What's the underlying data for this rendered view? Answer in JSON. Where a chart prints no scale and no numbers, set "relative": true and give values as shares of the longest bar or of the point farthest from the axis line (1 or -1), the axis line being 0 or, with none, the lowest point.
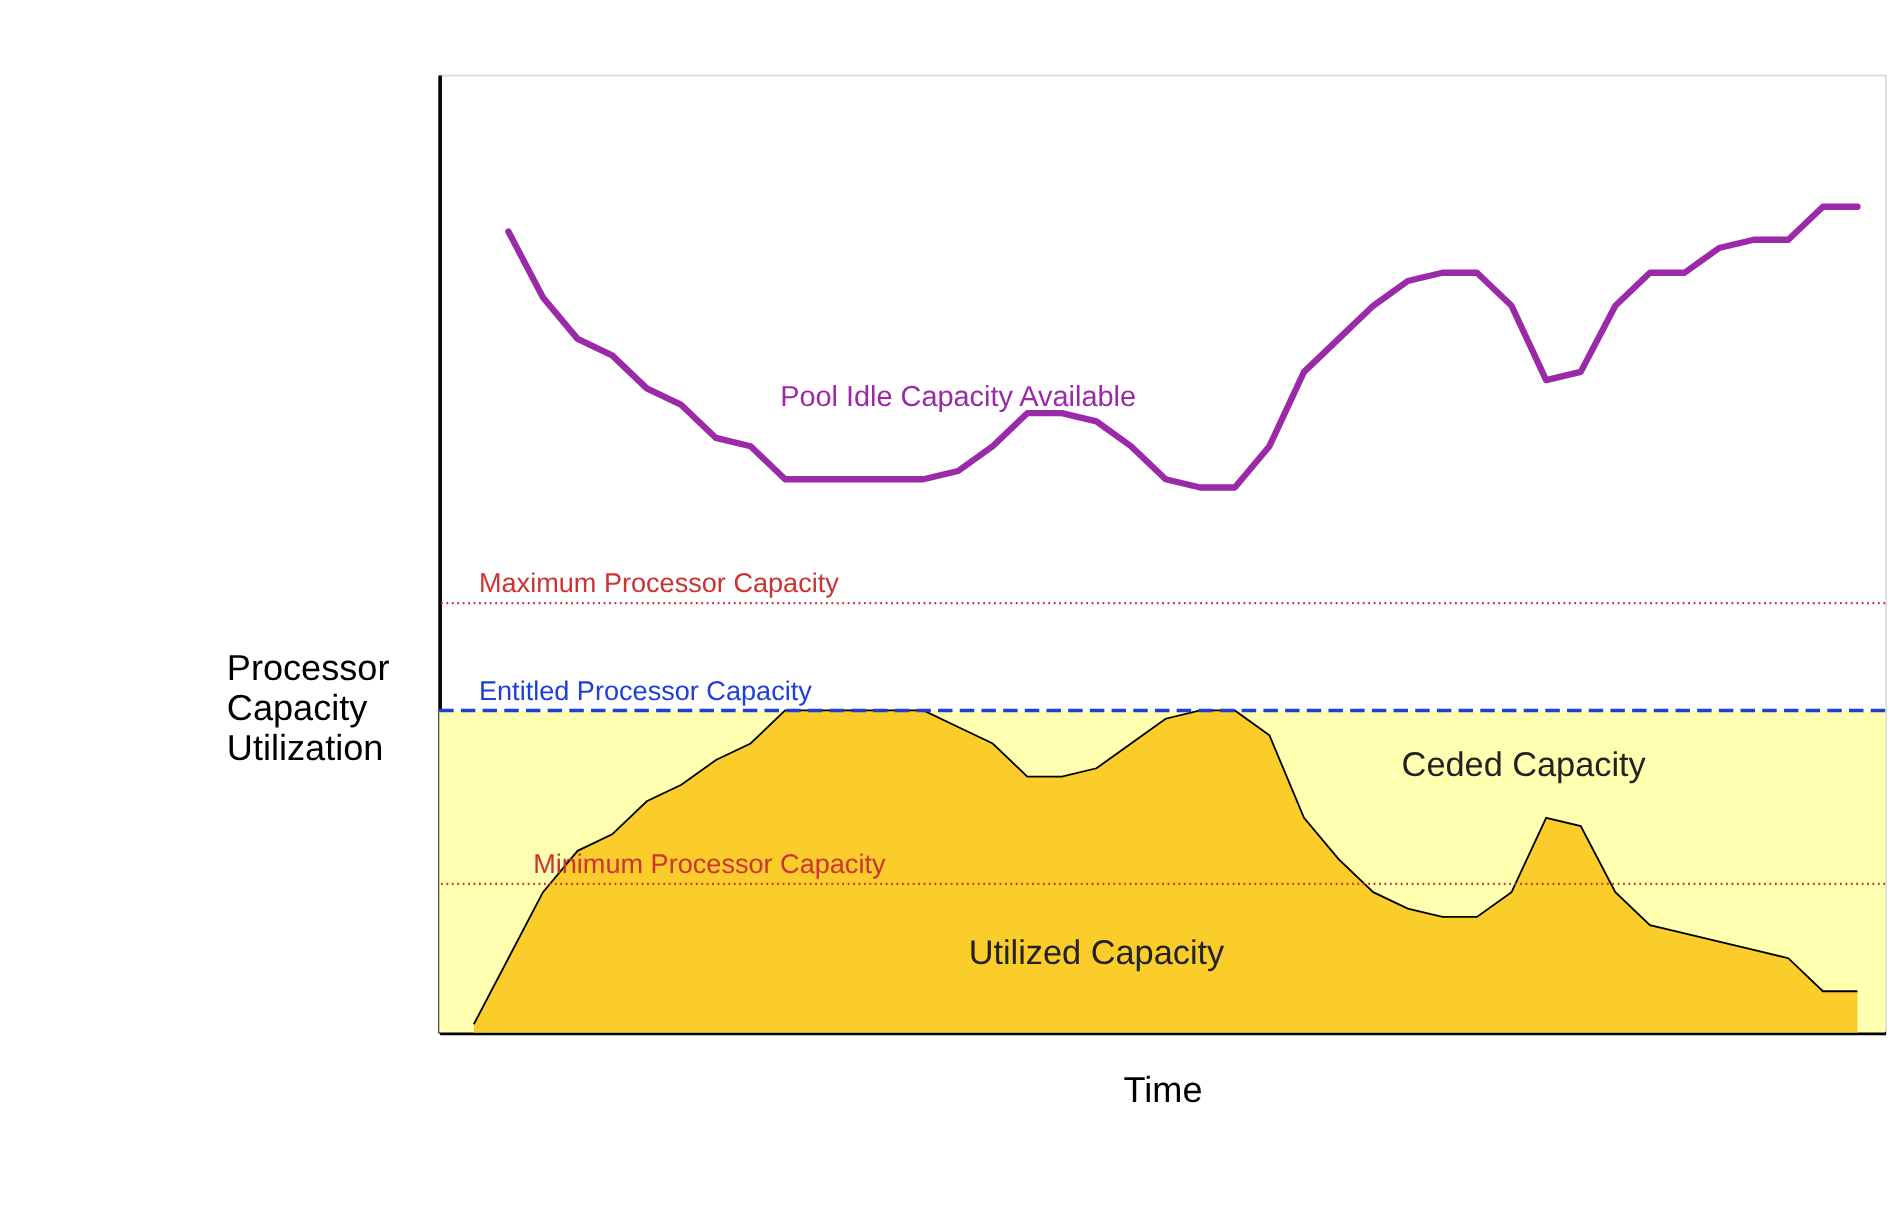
{
  "chart_data": {
    "type": "line",
    "relative": true,
    "xlabel": "Time",
    "ylabel": "Processor Capacity Utilization",
    "categories": [
      null,
      null,
      null,
      null,
      null,
      null,
      null,
      null,
      null,
      null,
      null,
      null,
      null,
      null,
      null,
      null,
      null,
      null,
      null,
      null,
      null,
      null,
      null,
      null,
      null,
      null,
      null,
      null,
      null,
      null,
      null,
      null,
      null,
      null,
      null,
      null,
      null,
      null,
      null,
      null,
      null
    ],
    "series": [
      {
        "name": "Pool Idle Capacity Available",
        "color": "#9b2aa8",
        "values": [
          null,
          0.97,
          0.89,
          0.84,
          0.82,
          0.78,
          0.76,
          0.72,
          0.71,
          0.67,
          0.67,
          0.67,
          0.67,
          0.67,
          0.68,
          0.71,
          0.75,
          0.75,
          0.74,
          0.71,
          0.67,
          0.66,
          0.66,
          0.71,
          0.8,
          0.84,
          0.88,
          0.91,
          0.92,
          0.92,
          0.88,
          0.79,
          0.8,
          0.88,
          0.92,
          0.92,
          0.95,
          0.96,
          0.96,
          1,
          1
        ]
      },
      {
        "name": "Utilized Capacity",
        "type": "area",
        "color": "#fbcd2b",
        "values": [
          0.01,
          0.09,
          0.17,
          0.22,
          0.24,
          0.28,
          0.3,
          0.33,
          0.35,
          0.39,
          0.39,
          0.39,
          0.39,
          0.39,
          0.37,
          0.35,
          0.31,
          0.31,
          0.32,
          0.35,
          0.38,
          0.39,
          0.39,
          0.36,
          0.26,
          0.21,
          0.17,
          0.15,
          0.14,
          0.14,
          0.17,
          0.26,
          0.25,
          0.17,
          0.13,
          0.12,
          0.11,
          0.1,
          0.09,
          0.05,
          0.05
        ]
      }
    ],
    "ref_lines": [
      {
        "axis": "y",
        "value": 0.52,
        "label": "Maximum Processor Capacity",
        "color": "#cc3333",
        "line_style": "dotted"
      },
      {
        "axis": "y",
        "value": 0.39,
        "label": "Entitled Processor Capacity",
        "color": "#1f3fd6",
        "line_style": "dashed"
      },
      {
        "axis": "y",
        "value": 0.18,
        "label": "Minimum Processor Capacity",
        "color": "#cc3333",
        "line_style": "dotted"
      }
    ],
    "bands": [
      {
        "axis": "y",
        "from": 0,
        "to": 0.39,
        "label": "Ceded Capacity",
        "color": "#ffffb0"
      }
    ]
  }
}
